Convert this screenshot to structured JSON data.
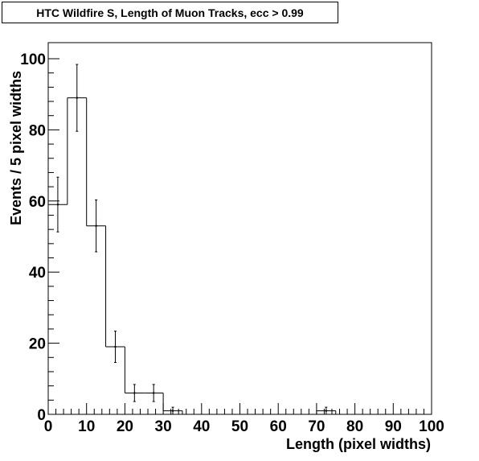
{
  "chart_data": {
    "type": "bar",
    "title": "HTC Wildfire S, Length of Muon Tracks, ecc > 0.99",
    "xlabel": "Length (pixel widths)",
    "ylabel": "Events / 5 pixel widths",
    "xlim": [
      0,
      100
    ],
    "ylim": [
      0,
      100
    ],
    "bin_width": 5,
    "x_ticks": [
      0,
      10,
      20,
      30,
      40,
      50,
      60,
      70,
      80,
      90,
      100
    ],
    "y_ticks": [
      0,
      20,
      40,
      60,
      80,
      100
    ],
    "bins": [
      {
        "x0": 0,
        "x1": 5,
        "value": 59,
        "error": 7.7
      },
      {
        "x0": 5,
        "x1": 10,
        "value": 89,
        "error": 9.4
      },
      {
        "x0": 10,
        "x1": 15,
        "value": 53,
        "error": 7.3
      },
      {
        "x0": 15,
        "x1": 20,
        "value": 19,
        "error": 4.4
      },
      {
        "x0": 20,
        "x1": 25,
        "value": 6,
        "error": 2.4
      },
      {
        "x0": 25,
        "x1": 30,
        "value": 6,
        "error": 2.4
      },
      {
        "x0": 30,
        "x1": 35,
        "value": 1,
        "error": 1.0
      },
      {
        "x0": 35,
        "x1": 40,
        "value": 0,
        "error": 0
      },
      {
        "x0": 40,
        "x1": 45,
        "value": 0,
        "error": 0
      },
      {
        "x0": 45,
        "x1": 50,
        "value": 0,
        "error": 0
      },
      {
        "x0": 50,
        "x1": 55,
        "value": 0,
        "error": 0
      },
      {
        "x0": 55,
        "x1": 60,
        "value": 0,
        "error": 0
      },
      {
        "x0": 60,
        "x1": 65,
        "value": 0,
        "error": 0
      },
      {
        "x0": 65,
        "x1": 70,
        "value": 0,
        "error": 0
      },
      {
        "x0": 70,
        "x1": 75,
        "value": 1,
        "error": 1.0
      },
      {
        "x0": 75,
        "x1": 80,
        "value": 0,
        "error": 0
      },
      {
        "x0": 80,
        "x1": 85,
        "value": 0,
        "error": 0
      },
      {
        "x0": 85,
        "x1": 90,
        "value": 0,
        "error": 0
      },
      {
        "x0": 90,
        "x1": 95,
        "value": 0,
        "error": 0
      },
      {
        "x0": 95,
        "x1": 100,
        "value": 0,
        "error": 0
      }
    ],
    "grid": false,
    "line_color": "#000000"
  }
}
